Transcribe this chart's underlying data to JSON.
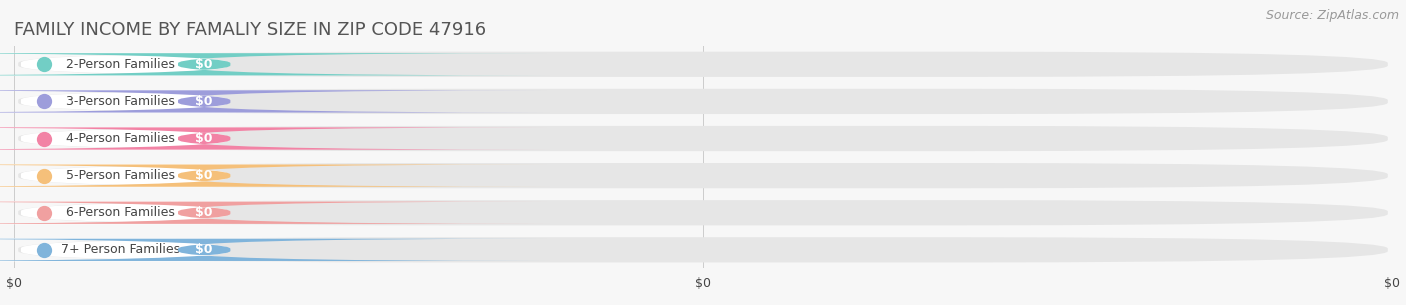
{
  "title": "FAMILY INCOME BY FAMALIY SIZE IN ZIP CODE 47916",
  "source": "Source: ZipAtlas.com",
  "categories": [
    "2-Person Families",
    "3-Person Families",
    "4-Person Families",
    "5-Person Families",
    "6-Person Families",
    "7+ Person Families"
  ],
  "values": [
    0,
    0,
    0,
    0,
    0,
    0
  ],
  "value_labels": [
    "$0",
    "$0",
    "$0",
    "$0",
    "$0",
    "$0"
  ],
  "bar_colors": [
    "#72cec5",
    "#9d9ddb",
    "#f283a5",
    "#f5c07a",
    "#f0a0a0",
    "#80b4db"
  ],
  "background_color": "#f7f7f7",
  "bar_bg_color": "#e6e6e6",
  "title_color": "#555555",
  "source_color": "#999999",
  "label_color": "#444444",
  "value_text_color": "#ffffff",
  "xtick_labels": [
    "$0",
    "$0",
    "$0"
  ],
  "xtick_positions": [
    0.0,
    0.5,
    1.0
  ],
  "title_fontsize": 13,
  "source_fontsize": 9,
  "label_fontsize": 9,
  "value_fontsize": 9,
  "figwidth": 14.06,
  "figheight": 3.05,
  "dpi": 100
}
